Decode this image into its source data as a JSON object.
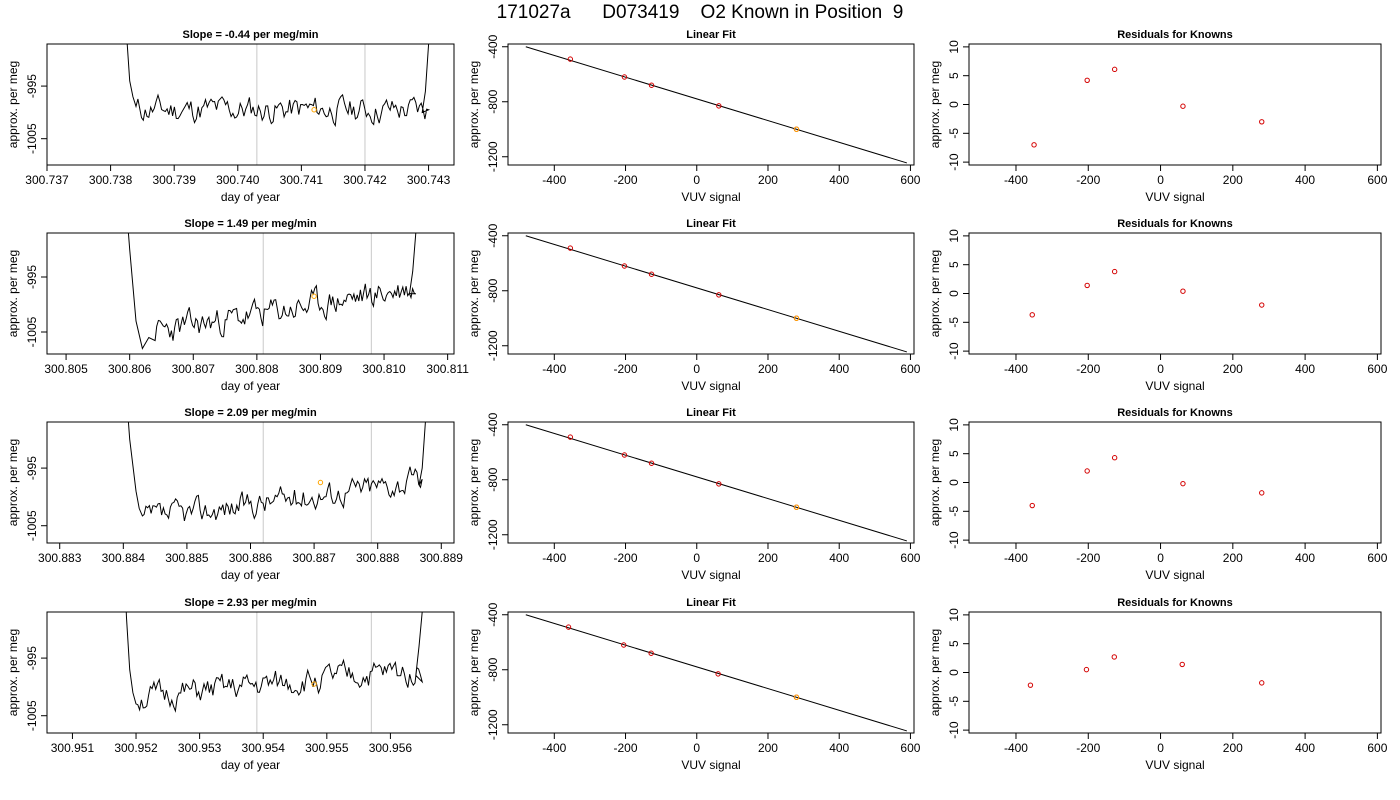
{
  "title": "171027a      D073419    O2 Known in Position  9",
  "chart_data": [
    {
      "type": "line",
      "panel": "timeseries",
      "row": 0,
      "title": "Slope =  -0.44  per meg/min",
      "xlabel": "day of year",
      "ylabel": "approx. per meg",
      "xticks": [
        "300.737",
        "300.738",
        "300.739",
        "300.740",
        "300.741",
        "300.742",
        "300.743"
      ],
      "yticks": [
        "-995",
        "-1005"
      ],
      "xlim": [
        300.737,
        300.7434
      ],
      "ylim": [
        -1010,
        -987
      ],
      "vlines": [
        300.7403,
        300.742
      ],
      "marker": {
        "x": 300.7412,
        "y": -999.5
      },
      "trace": {
        "start": 300.7384,
        "end": 300.743,
        "base_start": -999.5,
        "base_end": -999.5,
        "amplitude": 2.6,
        "seed": 11,
        "edge_start": [
          [
            300.7382,
            -975
          ],
          [
            300.73825,
            -985
          ],
          [
            300.7383,
            -994
          ],
          [
            300.73835,
            -997
          ]
        ],
        "edge_end": [
          [
            300.7429,
            -1000
          ],
          [
            300.74295,
            -996
          ],
          [
            300.743,
            -987
          ],
          [
            300.74305,
            -978
          ]
        ]
      }
    },
    {
      "type": "line",
      "panel": "timeseries",
      "row": 1,
      "title": "Slope =  1.49  per meg/min",
      "xlabel": "day of year",
      "ylabel": "approx. per meg",
      "xticks": [
        "300.805",
        "300.806",
        "300.807",
        "300.808",
        "300.809",
        "300.810",
        "300.811"
      ],
      "yticks": [
        "-995",
        "-1005"
      ],
      "xlim": [
        300.8047,
        300.8111
      ],
      "ylim": [
        -1009,
        -987
      ],
      "vlines": [
        300.8081,
        300.8098
      ],
      "marker": {
        "x": 300.8089,
        "y": -998.5
      },
      "trace": {
        "start": 300.8064,
        "end": 300.8105,
        "base_start": -1005,
        "base_end": -997,
        "amplitude": 2.6,
        "seed": 23,
        "edge_start": [
          [
            300.8059,
            -975
          ],
          [
            300.806,
            -990
          ],
          [
            300.8061,
            -1003
          ],
          [
            300.8062,
            -1008
          ],
          [
            300.8063,
            -1006
          ]
        ],
        "edge_end": [
          [
            300.8104,
            -998
          ],
          [
            300.81045,
            -994
          ],
          [
            300.8105,
            -987
          ],
          [
            300.81055,
            -978
          ]
        ]
      }
    },
    {
      "type": "line",
      "panel": "timeseries",
      "row": 2,
      "title": "Slope =  2.09  per meg/min",
      "xlabel": "day of year",
      "ylabel": "approx. per meg",
      "xticks": [
        "300.883",
        "300.884",
        "300.885",
        "300.886",
        "300.887",
        "300.888",
        "300.889"
      ],
      "yticks": [
        "-995",
        "-1005"
      ],
      "xlim": [
        300.8828,
        300.8892
      ],
      "ylim": [
        -1008,
        -987
      ],
      "vlines": [
        300.8862,
        300.8879
      ],
      "marker": {
        "x": 300.8871,
        "y": -997.5
      },
      "trace": {
        "start": 300.8843,
        "end": 300.8887,
        "base_start": -1004,
        "base_end": -997,
        "amplitude": 2.3,
        "seed": 37,
        "edge_start": [
          [
            300.884,
            -975
          ],
          [
            300.8841,
            -990
          ],
          [
            300.8842,
            -999
          ],
          [
            300.88425,
            -1002
          ]
        ],
        "edge_end": [
          [
            300.88865,
            -998
          ],
          [
            300.8887,
            -995
          ],
          [
            300.88875,
            -987
          ],
          [
            300.8888,
            -978
          ]
        ]
      }
    },
    {
      "type": "line",
      "panel": "timeseries",
      "row": 3,
      "title": "Slope =  2.93  per meg/min",
      "xlabel": "day of year",
      "ylabel": "approx. per meg",
      "xticks": [
        "300.951",
        "300.952",
        "300.953",
        "300.954",
        "300.955",
        "300.956"
      ],
      "yticks": [
        "-995",
        "-1005"
      ],
      "xlim": [
        300.9506,
        300.957
      ],
      "ylim": [
        -1008,
        -987
      ],
      "vlines": [
        300.9539,
        300.9557
      ],
      "marker": {
        "x": 300.9548,
        "y": -999.5
      },
      "trace": {
        "start": 300.952,
        "end": 300.9565,
        "base_start": -1002,
        "base_end": -997,
        "amplitude": 2.3,
        "seed": 51,
        "edge_start": [
          [
            300.9518,
            -975
          ],
          [
            300.95185,
            -988
          ],
          [
            300.9519,
            -997
          ],
          [
            300.95195,
            -1001
          ]
        ],
        "edge_end": [
          [
            300.9564,
            -998
          ],
          [
            300.95645,
            -993
          ],
          [
            300.9565,
            -987
          ],
          [
            300.95655,
            -978
          ]
        ]
      }
    },
    {
      "type": "scatter",
      "panel": "fit",
      "row": 0,
      "title": "Linear Fit",
      "xlabel": "VUV signal",
      "ylabel": "approx. per meg",
      "xticks": [
        "-400",
        "-200",
        "0",
        "200",
        "400",
        "600"
      ],
      "xtick_values": [
        -400,
        -200,
        0,
        200,
        400,
        600
      ],
      "yticks": [
        "-400",
        "-800",
        "-1200"
      ],
      "ytick_values": [
        -400,
        -800,
        -1200
      ],
      "xlim": [
        -530,
        610
      ],
      "ylim": [
        -1260,
        -380
      ],
      "line": {
        "x": [
          -480,
          590
        ],
        "y": [
          -400,
          -1245
        ]
      },
      "points": [
        {
          "x": -355,
          "y": -490
        },
        {
          "x": -203,
          "y": -620
        },
        {
          "x": -127,
          "y": -680
        },
        {
          "x": 62,
          "y": -830
        },
        {
          "x": 280,
          "y": -1000
        }
      ],
      "highlight": {
        "x": 280,
        "y": -1000
      }
    },
    {
      "type": "scatter",
      "panel": "fit",
      "row": 1,
      "title": "Linear Fit",
      "xlabel": "VUV signal",
      "ylabel": "approx. per meg",
      "xticks": [
        "-400",
        "-200",
        "0",
        "200",
        "400",
        "600"
      ],
      "xtick_values": [
        -400,
        -200,
        0,
        200,
        400,
        600
      ],
      "yticks": [
        "-400",
        "-800",
        "-1200"
      ],
      "ytick_values": [
        -400,
        -800,
        -1200
      ],
      "xlim": [
        -530,
        610
      ],
      "ylim": [
        -1260,
        -380
      ],
      "line": {
        "x": [
          -480,
          590
        ],
        "y": [
          -400,
          -1245
        ]
      },
      "points": [
        {
          "x": -355,
          "y": -490
        },
        {
          "x": -203,
          "y": -620
        },
        {
          "x": -127,
          "y": -680
        },
        {
          "x": 62,
          "y": -830
        },
        {
          "x": 280,
          "y": -1000
        }
      ],
      "highlight": {
        "x": 280,
        "y": -1000
      }
    },
    {
      "type": "scatter",
      "panel": "fit",
      "row": 2,
      "title": "Linear Fit",
      "xlabel": "VUV signal",
      "ylabel": "approx. per meg",
      "xticks": [
        "-400",
        "-200",
        "0",
        "200",
        "400",
        "600"
      ],
      "xtick_values": [
        -400,
        -200,
        0,
        200,
        400,
        600
      ],
      "yticks": [
        "-400",
        "-800",
        "-1200"
      ],
      "ytick_values": [
        -400,
        -800,
        -1200
      ],
      "xlim": [
        -530,
        610
      ],
      "ylim": [
        -1260,
        -380
      ],
      "line": {
        "x": [
          -480,
          590
        ],
        "y": [
          -400,
          -1245
        ]
      },
      "points": [
        {
          "x": -355,
          "y": -490
        },
        {
          "x": -203,
          "y": -620
        },
        {
          "x": -127,
          "y": -680
        },
        {
          "x": 62,
          "y": -830
        },
        {
          "x": 280,
          "y": -1000
        }
      ],
      "highlight": {
        "x": 280,
        "y": -1000
      }
    },
    {
      "type": "scatter",
      "panel": "fit",
      "row": 3,
      "title": "Linear Fit",
      "xlabel": "VUV signal",
      "ylabel": "approx. per meg",
      "xticks": [
        "-400",
        "-200",
        "0",
        "200",
        "400",
        "600"
      ],
      "xtick_values": [
        -400,
        -200,
        0,
        200,
        400,
        600
      ],
      "yticks": [
        "-400",
        "-800",
        "-1200"
      ],
      "ytick_values": [
        -400,
        -800,
        -1200
      ],
      "xlim": [
        -530,
        610
      ],
      "ylim": [
        -1260,
        -380
      ],
      "line": {
        "x": [
          -480,
          590
        ],
        "y": [
          -400,
          -1245
        ]
      },
      "points": [
        {
          "x": -360,
          "y": -490
        },
        {
          "x": -205,
          "y": -620
        },
        {
          "x": -128,
          "y": -680
        },
        {
          "x": 60,
          "y": -830
        },
        {
          "x": 280,
          "y": -1000
        }
      ],
      "highlight": {
        "x": 280,
        "y": -1000
      }
    },
    {
      "type": "scatter",
      "panel": "residuals",
      "row": 0,
      "title": "Residuals for Knowns",
      "xlabel": "VUV signal",
      "ylabel": "approx. per meg",
      "xticks": [
        "-400",
        "-200",
        "0",
        "200",
        "400",
        "600"
      ],
      "xtick_values": [
        -400,
        -200,
        0,
        200,
        400,
        600
      ],
      "yticks": [
        "10",
        "5",
        "0",
        "-5",
        "-10"
      ],
      "ytick_values": [
        10,
        5,
        0,
        -5,
        -10
      ],
      "xlim": [
        -530,
        610
      ],
      "ylim": [
        -10.5,
        10.5
      ],
      "points": [
        {
          "x": -350,
          "y": -7.0
        },
        {
          "x": -203,
          "y": 4.2
        },
        {
          "x": -127,
          "y": 6.1
        },
        {
          "x": 62,
          "y": -0.3
        },
        {
          "x": 280,
          "y": -3.0
        }
      ]
    },
    {
      "type": "scatter",
      "panel": "residuals",
      "row": 1,
      "title": "Residuals for Knowns",
      "xlabel": "VUV signal",
      "ylabel": "approx. per meg",
      "xticks": [
        "-400",
        "-200",
        "0",
        "200",
        "400",
        "600"
      ],
      "xtick_values": [
        -400,
        -200,
        0,
        200,
        400,
        600
      ],
      "yticks": [
        "10",
        "5",
        "0",
        "-5",
        "-10"
      ],
      "ytick_values": [
        10,
        5,
        0,
        -5,
        -10
      ],
      "xlim": [
        -530,
        610
      ],
      "ylim": [
        -10.5,
        10.5
      ],
      "points": [
        {
          "x": -355,
          "y": -3.7
        },
        {
          "x": -203,
          "y": 1.4
        },
        {
          "x": -127,
          "y": 3.8
        },
        {
          "x": 62,
          "y": 0.4
        },
        {
          "x": 280,
          "y": -2.0
        }
      ]
    },
    {
      "type": "scatter",
      "panel": "residuals",
      "row": 2,
      "title": "Residuals for Knowns",
      "xlabel": "VUV signal",
      "ylabel": "approx. per meg",
      "xticks": [
        "-400",
        "-200",
        "0",
        "200",
        "400",
        "600"
      ],
      "xtick_values": [
        -400,
        -200,
        0,
        200,
        400,
        600
      ],
      "yticks": [
        "10",
        "5",
        "0",
        "-5",
        "-10"
      ],
      "ytick_values": [
        10,
        5,
        0,
        -5,
        -10
      ],
      "xlim": [
        -530,
        610
      ],
      "ylim": [
        -10.5,
        10.5
      ],
      "points": [
        {
          "x": -355,
          "y": -4.0
        },
        {
          "x": -203,
          "y": 2.0
        },
        {
          "x": -127,
          "y": 4.3
        },
        {
          "x": 62,
          "y": -0.2
        },
        {
          "x": 280,
          "y": -1.8
        }
      ]
    },
    {
      "type": "scatter",
      "panel": "residuals",
      "row": 3,
      "title": "Residuals for Knowns",
      "xlabel": "VUV signal",
      "ylabel": "approx. per meg",
      "xticks": [
        "-400",
        "-200",
        "0",
        "200",
        "400",
        "600"
      ],
      "xtick_values": [
        -400,
        -200,
        0,
        200,
        400,
        600
      ],
      "yticks": [
        "10",
        "5",
        "0",
        "-5",
        "-10"
      ],
      "ytick_values": [
        10,
        5,
        0,
        -5,
        -10
      ],
      "xlim": [
        -530,
        610
      ],
      "ylim": [
        -10.5,
        10.5
      ],
      "points": [
        {
          "x": -360,
          "y": -2.2
        },
        {
          "x": -205,
          "y": 0.5
        },
        {
          "x": -128,
          "y": 2.7
        },
        {
          "x": 60,
          "y": 1.4
        },
        {
          "x": 280,
          "y": -1.8
        }
      ]
    }
  ],
  "colors": {
    "axis": "#000000",
    "trace": "#000000",
    "vline": "#c8c8c8",
    "marker": "#ffa500",
    "point": "#d40000",
    "fitline": "#000000"
  }
}
